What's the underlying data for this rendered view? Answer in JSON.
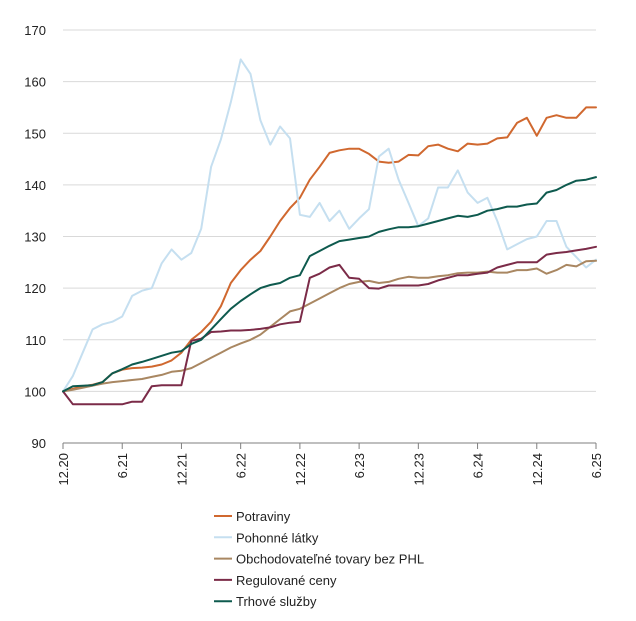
{
  "chart_data": {
    "type": "line",
    "title": "",
    "xlabel": "",
    "ylabel": "",
    "ylim": [
      90,
      170
    ],
    "yticks": [
      90,
      100,
      110,
      120,
      130,
      140,
      150,
      160,
      170
    ],
    "x_range": [
      0,
      54
    ],
    "x_ticks": [
      {
        "x": 0,
        "label": "12.20"
      },
      {
        "x": 6,
        "label": "6.21"
      },
      {
        "x": 12,
        "label": "12.21"
      },
      {
        "x": 18,
        "label": "6.22"
      },
      {
        "x": 24,
        "label": "12.22"
      },
      {
        "x": 30,
        "label": "6.23"
      },
      {
        "x": 36,
        "label": "12.23"
      },
      {
        "x": 42,
        "label": "6.24"
      },
      {
        "x": 48,
        "label": "12.24"
      },
      {
        "x": 54,
        "label": "6.25"
      }
    ],
    "legend_position": "bottom",
    "series": [
      {
        "name": "Potraviny",
        "color": "#d0682f",
        "values": [
          100,
          100.5,
          101,
          101.3,
          101.8,
          103.5,
          104.2,
          104.5,
          104.6,
          104.8,
          105.2,
          106,
          107.5,
          110,
          111.5,
          113.5,
          116.5,
          121,
          123.5,
          125.5,
          127.2,
          130,
          133,
          135.5,
          137.5,
          141,
          143.5,
          146.2,
          146.7,
          147,
          147,
          146,
          144.5,
          144.3,
          144.5,
          145.8,
          145.7,
          147.5,
          147.8,
          147,
          146.5,
          148,
          147.8,
          148,
          149,
          149.2,
          152,
          153,
          149.5,
          153,
          153.5,
          153,
          153,
          155,
          155
        ]
      },
      {
        "name": "Pohonné látky",
        "color": "#c5dff0",
        "values": [
          100,
          103,
          107.5,
          112,
          113,
          113.5,
          114.5,
          118.5,
          119.5,
          120,
          124.8,
          127.5,
          125.5,
          126.8,
          131.5,
          143.5,
          148.8,
          156,
          164.3,
          161.5,
          152.5,
          147.8,
          151.3,
          149,
          134.2,
          133.8,
          136.5,
          133,
          135,
          131.5,
          133.5,
          135.3,
          145.5,
          147,
          141,
          136.5,
          132,
          133.5,
          139.5,
          139.5,
          142.8,
          138.5,
          136.5,
          137.5,
          133,
          127.5,
          128.5,
          129.5,
          130,
          133,
          133,
          128,
          126,
          124,
          125.5
        ]
      },
      {
        "name": "Obchodovateľné tovary bez PHL",
        "color": "#a98762",
        "values": [
          100,
          100.3,
          100.7,
          101.1,
          101.5,
          101.8,
          102,
          102.2,
          102.4,
          102.8,
          103.2,
          103.8,
          104,
          104.5,
          105.5,
          106.5,
          107.5,
          108.5,
          109.3,
          110,
          111,
          112.5,
          114,
          115.5,
          116,
          117,
          118,
          119,
          120,
          120.8,
          121.2,
          121.4,
          121,
          121.2,
          121.8,
          122.2,
          122,
          122,
          122.3,
          122.5,
          122.9,
          123,
          123,
          123.2,
          123,
          123,
          123.5,
          123.5,
          123.8,
          122.8,
          123.5,
          124.5,
          124.2,
          125.2,
          125.3
        ]
      },
      {
        "name": "Regulované ceny",
        "color": "#7b2b48",
        "values": [
          100,
          97.5,
          97.5,
          97.5,
          97.5,
          97.5,
          97.5,
          98,
          98,
          101,
          101.2,
          101.2,
          101.2,
          109.8,
          110.2,
          111.5,
          111.6,
          111.8,
          111.8,
          111.9,
          112.1,
          112.4,
          113,
          113.3,
          113.5,
          122,
          122.8,
          124,
          124.5,
          122,
          121.8,
          120,
          119.9,
          120.5,
          120.5,
          120.5,
          120.5,
          120.8,
          121.5,
          122,
          122.5,
          122.5,
          122.8,
          123,
          124,
          124.5,
          125,
          125,
          125,
          126.5,
          126.8,
          127,
          127.3,
          127.6,
          128
        ]
      },
      {
        "name": "Trhové služby",
        "color": "#0e5a4e",
        "values": [
          100,
          101,
          101.1,
          101.2,
          101.8,
          103.5,
          104.3,
          105.2,
          105.7,
          106.3,
          106.9,
          107.5,
          107.8,
          109.2,
          110,
          112,
          114,
          116,
          117.5,
          118.8,
          120,
          120.6,
          121,
          122,
          122.5,
          126.2,
          127.2,
          128.2,
          129.1,
          129.4,
          129.7,
          130,
          130.9,
          131.4,
          131.8,
          131.8,
          132,
          132.5,
          133,
          133.5,
          134,
          133.8,
          134.2,
          135,
          135.3,
          135.8,
          135.8,
          136.2,
          136.4,
          138.5,
          139,
          140,
          140.8,
          141,
          141.5
        ]
      }
    ]
  }
}
